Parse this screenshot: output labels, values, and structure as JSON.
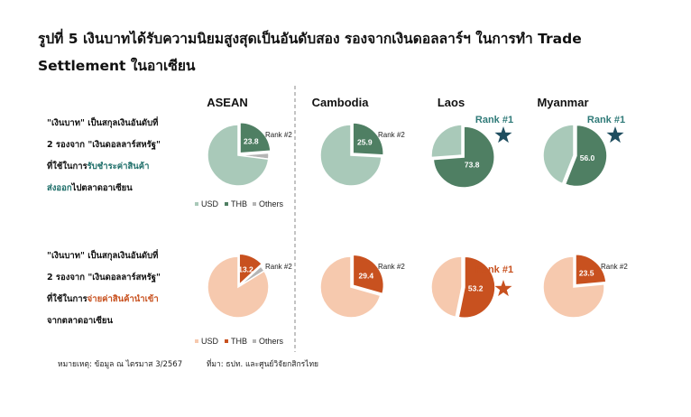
{
  "title": "รูปที่ 5 เงินบาทได้รับความนิยมสูงสุดเป็นอันดับสอง รองจากเงินดอลลาร์ฯ ในการทำ Trade Settlement ในอาเซียน",
  "row1_desc": {
    "line1": "\"เงินบาท\" เป็นสกุลเงินอันดับที่",
    "line2": "2 รองจาก \"เงินดอลลาร์สหรัฐ\"",
    "line3a": "ที่ใช้ในการ",
    "line3b": "รับชำระค่าสินค้า",
    "line4a": "ส่งออก",
    "line4b": "ไปตลาดอาเซียน"
  },
  "row2_desc": {
    "line1": "\"เงินบาท\" เป็นสกุลเงินอันดับที่",
    "line2": "2 รองจาก \"เงินดอลลาร์สหรัฐ\"",
    "line3a": "ที่ใช้ในการ",
    "line3b": "จ่ายค่าสินค้านำเข้า",
    "line4": "จากตลาดอาเซียน"
  },
  "footnote": {
    "note": "หมายเหตุ: ข้อมูล ณ ไตรมาส 3/2567",
    "source": "ที่มา: ธปท. และศูนย์วิจัยกสิกรไทย"
  },
  "colors": {
    "usd_green": "#a9c9b9",
    "thb_green": "#4f7f63",
    "others_gray": "#b5b5b5",
    "usd_orange": "#f6c9ae",
    "thb_orange": "#c8511f",
    "rank_green_text": "#2f7a78",
    "star_navy": "#1f4e60",
    "star_orange": "#c8511f"
  },
  "chart_data": [
    {
      "type": "pie",
      "row": "export",
      "title": "ASEAN",
      "slices": [
        {
          "label": "THB",
          "value": 23.8
        },
        {
          "label": "Others",
          "value": 3.2
        },
        {
          "label": "USD",
          "value": 73.0
        }
      ],
      "value_label": "23.8",
      "rank_text": "Rank #2",
      "rank_style": "small"
    },
    {
      "type": "pie",
      "row": "export",
      "title": "Cambodia",
      "slices": [
        {
          "label": "THB",
          "value": 25.9
        },
        {
          "label": "USD",
          "value": 74.1
        }
      ],
      "value_label": "25.9",
      "rank_text": "Rank #2",
      "rank_style": "small"
    },
    {
      "type": "pie",
      "row": "export",
      "title": "Laos",
      "slices": [
        {
          "label": "THB",
          "value": 73.8
        },
        {
          "label": "USD",
          "value": 26.2
        }
      ],
      "value_label": "73.8",
      "rank_text": "Rank #1",
      "rank_style": "big"
    },
    {
      "type": "pie",
      "row": "export",
      "title": "Myanmar",
      "slices": [
        {
          "label": "THB",
          "value": 56.0
        },
        {
          "label": "USD",
          "value": 44.0
        }
      ],
      "value_label": "56.0",
      "rank_text": "Rank #1",
      "rank_style": "big"
    },
    {
      "type": "pie",
      "row": "import",
      "title": "",
      "slices": [
        {
          "label": "THB",
          "value": 13.2
        },
        {
          "label": "Others",
          "value": 3.0
        },
        {
          "label": "USD",
          "value": 83.8
        }
      ],
      "value_label": "13.2",
      "rank_text": "Rank #2",
      "rank_style": "small"
    },
    {
      "type": "pie",
      "row": "import",
      "title": "",
      "slices": [
        {
          "label": "THB",
          "value": 29.4
        },
        {
          "label": "USD",
          "value": 70.6
        }
      ],
      "value_label": "29.4",
      "rank_text": "Rank #2",
      "rank_style": "small"
    },
    {
      "type": "pie",
      "row": "import",
      "title": "",
      "slices": [
        {
          "label": "THB",
          "value": 53.2
        },
        {
          "label": "USD",
          "value": 46.8
        }
      ],
      "value_label": "53.2",
      "rank_text": "Rank #1",
      "rank_style": "big"
    },
    {
      "type": "pie",
      "row": "import",
      "title": "",
      "slices": [
        {
          "label": "THB",
          "value": 23.5
        },
        {
          "label": "USD",
          "value": 76.5
        }
      ],
      "value_label": "23.5",
      "rank_text": "Rank #2",
      "rank_style": "small"
    }
  ],
  "legend": {
    "items": [
      "USD",
      "THB",
      "Others"
    ]
  }
}
